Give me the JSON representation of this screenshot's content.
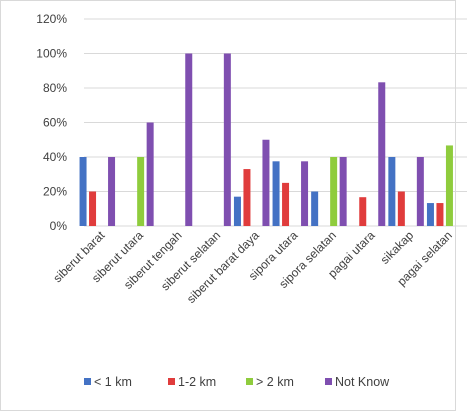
{
  "chart_data": {
    "type": "bar",
    "title": "",
    "xlabel": "",
    "ylabel": "",
    "categories": [
      "siberut barat",
      "siberut utara",
      "siberut tengah",
      "siberut selatan",
      "siberut barat daya",
      "sipora utara",
      "sipora selatan",
      "pagai utara",
      "sikakap",
      "pagai selatan"
    ],
    "series": [
      {
        "name": "< 1 km",
        "color": "#4472c4",
        "values": [
          40,
          0,
          0,
          0,
          17,
          37.5,
          20,
          0,
          40,
          13.3
        ]
      },
      {
        "name": "1-2 km",
        "color": "#e03c3c",
        "values": [
          20,
          0,
          0,
          0,
          33,
          25,
          0,
          16.7,
          20,
          13.3
        ]
      },
      {
        "name": "> 2 km",
        "color": "#8fcc3d",
        "values": [
          0,
          40,
          0,
          0,
          0,
          0,
          40,
          0,
          0,
          46.7
        ]
      },
      {
        "name": "Not Know",
        "color": "#7f4fb0",
        "values": [
          40,
          60,
          100,
          100,
          50,
          37.5,
          40,
          83.3,
          40,
          0
        ]
      }
    ],
    "ylim": [
      0,
      120
    ],
    "yticks": [
      "0%",
      "20%",
      "40%",
      "60%",
      "80%",
      "100%",
      "120%"
    ],
    "grid": true,
    "legend": "bottom"
  }
}
